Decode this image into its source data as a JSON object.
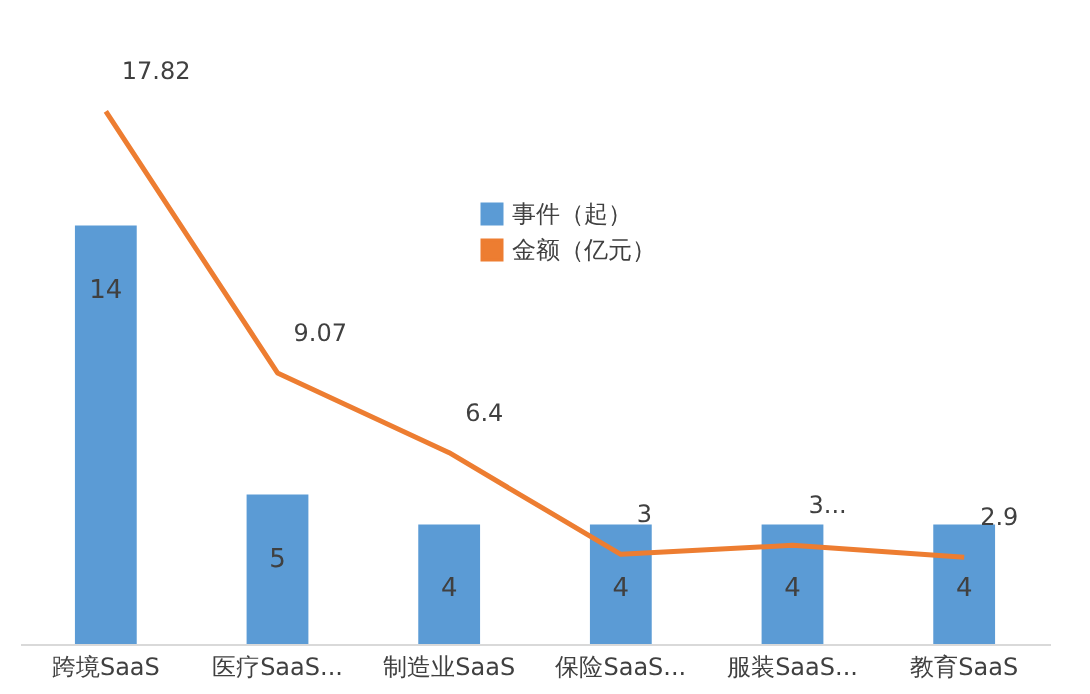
{
  "chart_data": {
    "type": "bar",
    "categories": [
      "跨境SaaS",
      "医疗SaaS...",
      "制造业SaaS",
      "保险SaaS...",
      "服装SaaS...",
      "教育SaaS"
    ],
    "tick_labels": "x",
    "legend": "top",
    "series": [
      {
        "name": "事件（起）",
        "color": "#5b9bd5",
        "values": [
          14,
          5,
          4,
          4,
          4,
          4
        ],
        "value_labels": [
          "14",
          "5",
          "4",
          "4",
          "4",
          "4"
        ]
      },
      {
        "name": "金额（亿元）",
        "type": "line",
        "color": "#ed7d31",
        "marker": "none",
        "values": [
          17.82,
          9.07,
          6.4,
          3,
          3.3,
          2.9
        ],
        "value_labels": [
          "17.82",
          "9.07",
          "6.4",
          "3",
          "3...",
          "2.9"
        ]
      }
    ]
  }
}
